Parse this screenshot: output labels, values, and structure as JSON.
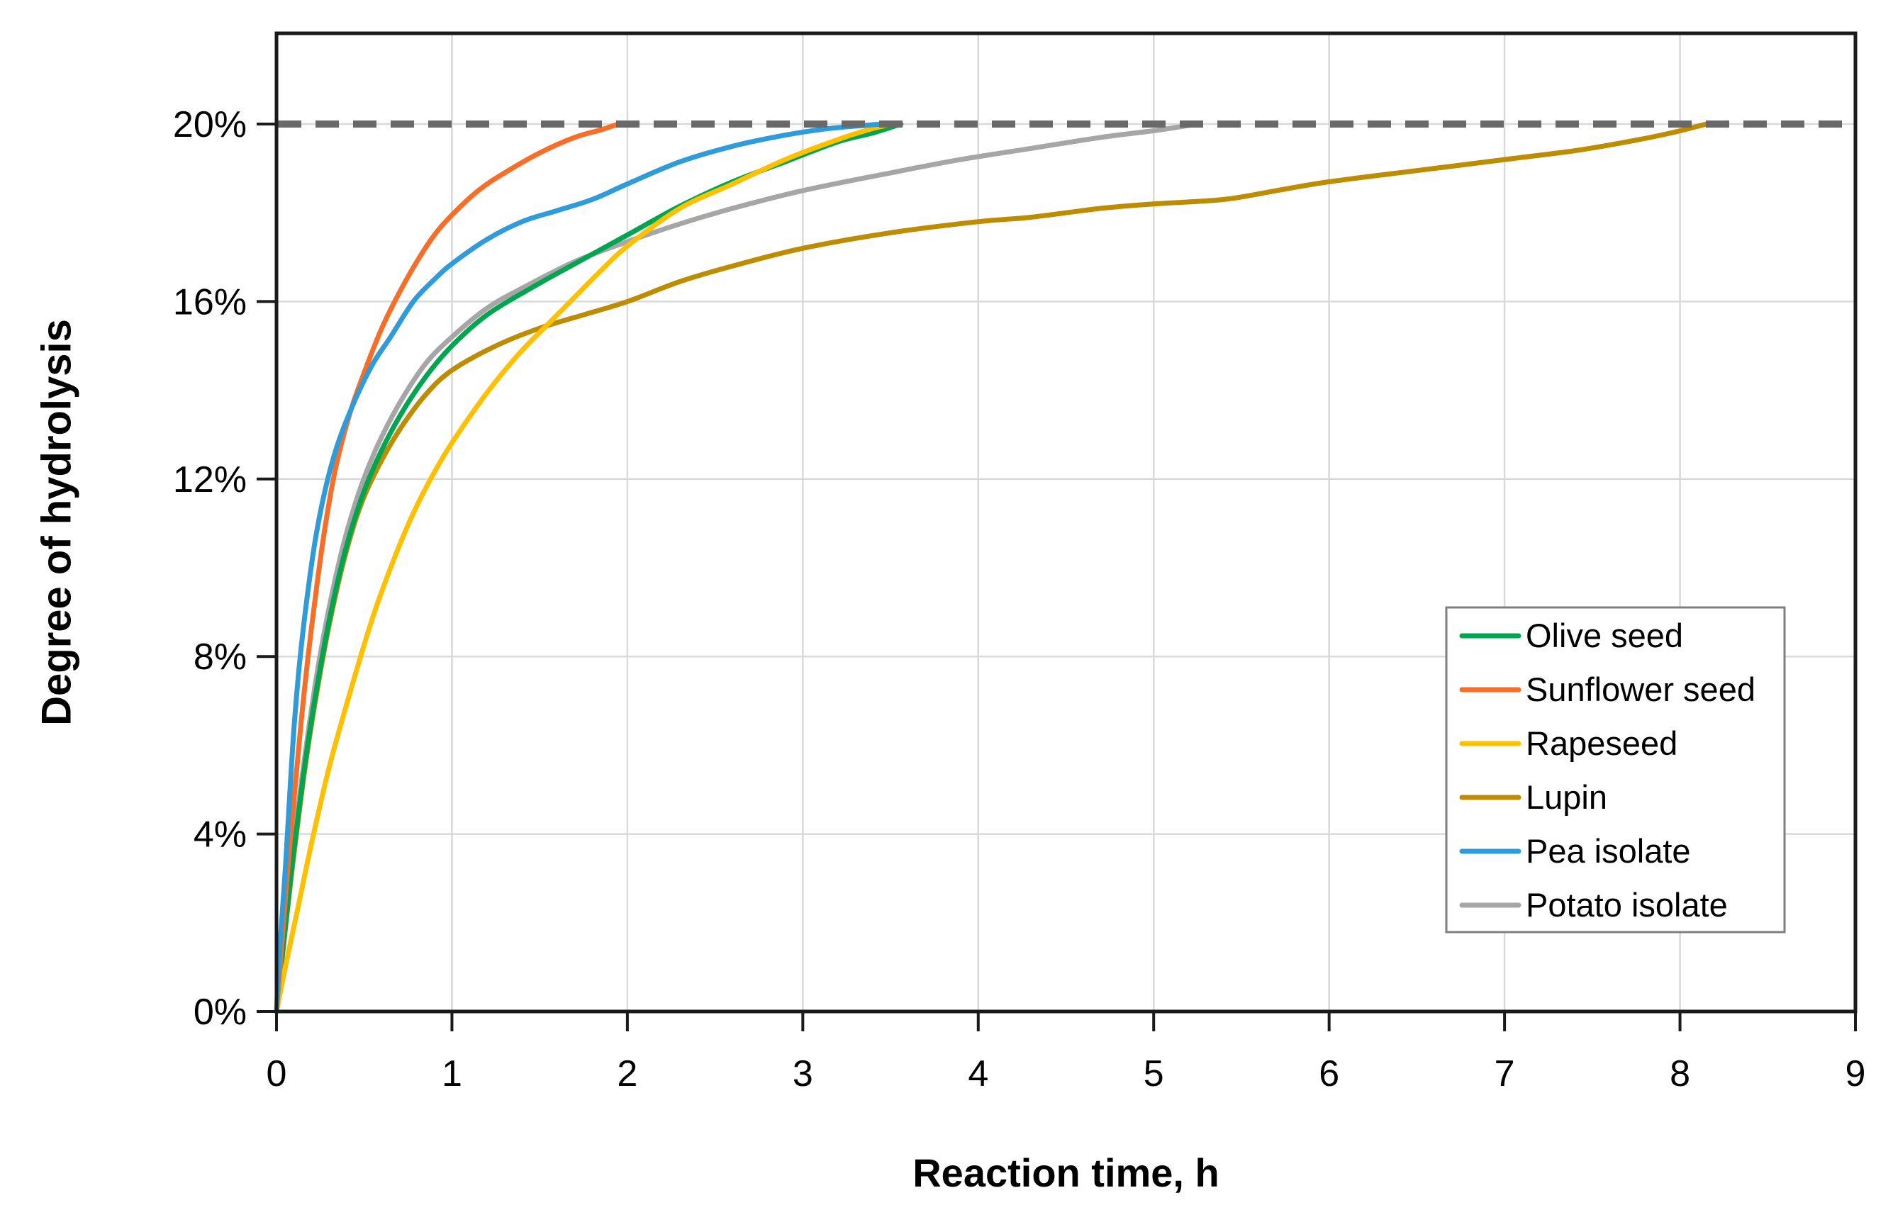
{
  "chart_data": {
    "type": "line",
    "title": "",
    "xlabel": "Reaction time, h",
    "ylabel": "Degree of hydrolysis",
    "xlim": [
      0,
      9
    ],
    "ylim_percent": [
      0,
      22
    ],
    "x_ticks": [
      "0",
      "1",
      "2",
      "3",
      "4",
      "5",
      "6",
      "7",
      "8",
      "9"
    ],
    "y_ticks_percent": [
      0,
      4,
      8,
      12,
      16,
      20
    ],
    "y_tick_labels": [
      "0%",
      "4%",
      "8%",
      "12%",
      "16%",
      "20%"
    ],
    "grid": true,
    "gridline_color": "#d9d9d9",
    "axis_color": "#1a1a1a",
    "reference_line": {
      "value_percent": 20,
      "style": "dashed",
      "color": "#696969"
    },
    "legend": {
      "position": "right-middle",
      "border_color": "#7f7f7f",
      "entries": [
        "Olive seed",
        "Sunflower seed",
        "Rapeseed",
        "Lupin",
        "Pea isolate",
        "Potato isolate"
      ]
    },
    "series": [
      {
        "name": "Olive seed",
        "color": "#00a550",
        "points": [
          [
            0,
            0
          ],
          [
            0.04,
            1.5
          ],
          [
            0.08,
            3.0
          ],
          [
            0.12,
            4.3
          ],
          [
            0.17,
            5.8
          ],
          [
            0.23,
            7.3
          ],
          [
            0.3,
            8.8
          ],
          [
            0.38,
            10.2
          ],
          [
            0.47,
            11.4
          ],
          [
            0.57,
            12.4
          ],
          [
            0.7,
            13.4
          ],
          [
            0.85,
            14.3
          ],
          [
            1.0,
            15.0
          ],
          [
            1.2,
            15.7
          ],
          [
            1.45,
            16.3
          ],
          [
            1.7,
            16.85
          ],
          [
            2.0,
            17.5
          ],
          [
            2.3,
            18.15
          ],
          [
            2.6,
            18.7
          ],
          [
            2.9,
            19.15
          ],
          [
            3.2,
            19.6
          ],
          [
            3.4,
            19.8
          ],
          [
            3.56,
            20
          ]
        ]
      },
      {
        "name": "Sunflower seed",
        "color": "#f66e27",
        "points": [
          [
            0,
            0
          ],
          [
            0.03,
            1.5
          ],
          [
            0.06,
            3.0
          ],
          [
            0.1,
            4.8
          ],
          [
            0.14,
            6.5
          ],
          [
            0.18,
            8.0
          ],
          [
            0.23,
            9.6
          ],
          [
            0.28,
            11.0
          ],
          [
            0.34,
            12.3
          ],
          [
            0.42,
            13.5
          ],
          [
            0.5,
            14.4
          ],
          [
            0.6,
            15.4
          ],
          [
            0.7,
            16.2
          ],
          [
            0.8,
            16.9
          ],
          [
            0.9,
            17.5
          ],
          [
            1.0,
            17.95
          ],
          [
            1.15,
            18.5
          ],
          [
            1.3,
            18.9
          ],
          [
            1.5,
            19.35
          ],
          [
            1.7,
            19.7
          ],
          [
            1.85,
            19.87
          ],
          [
            1.95,
            20
          ]
        ]
      },
      {
        "name": "Rapeseed",
        "color": "#ffc000",
        "points": [
          [
            0,
            0
          ],
          [
            0.05,
            1.0
          ],
          [
            0.12,
            2.3
          ],
          [
            0.2,
            3.8
          ],
          [
            0.3,
            5.5
          ],
          [
            0.42,
            7.2
          ],
          [
            0.55,
            8.9
          ],
          [
            0.68,
            10.3
          ],
          [
            0.8,
            11.4
          ],
          [
            0.95,
            12.5
          ],
          [
            1.1,
            13.4
          ],
          [
            1.25,
            14.2
          ],
          [
            1.4,
            14.9
          ],
          [
            1.55,
            15.5
          ],
          [
            1.7,
            16.1
          ],
          [
            1.85,
            16.7
          ],
          [
            2.0,
            17.25
          ],
          [
            2.3,
            18.1
          ],
          [
            2.6,
            18.65
          ],
          [
            2.9,
            19.2
          ],
          [
            3.2,
            19.65
          ],
          [
            3.4,
            19.9
          ],
          [
            3.52,
            20
          ]
        ]
      },
      {
        "name": "Lupin",
        "color": "#be8c00",
        "points": [
          [
            0,
            0
          ],
          [
            0.04,
            1.5
          ],
          [
            0.08,
            2.9
          ],
          [
            0.12,
            4.2
          ],
          [
            0.17,
            5.7
          ],
          [
            0.23,
            7.2
          ],
          [
            0.3,
            8.7
          ],
          [
            0.38,
            10.1
          ],
          [
            0.47,
            11.3
          ],
          [
            0.57,
            12.2
          ],
          [
            0.7,
            13.1
          ],
          [
            0.85,
            13.9
          ],
          [
            1.0,
            14.45
          ],
          [
            1.25,
            15.0
          ],
          [
            1.5,
            15.4
          ],
          [
            1.75,
            15.7
          ],
          [
            2.0,
            16.0
          ],
          [
            2.3,
            16.45
          ],
          [
            2.6,
            16.8
          ],
          [
            3.0,
            17.2
          ],
          [
            3.5,
            17.55
          ],
          [
            4.0,
            17.8
          ],
          [
            4.3,
            17.9
          ],
          [
            4.7,
            18.1
          ],
          [
            5.0,
            18.2
          ],
          [
            5.4,
            18.3
          ],
          [
            5.7,
            18.5
          ],
          [
            6.0,
            18.7
          ],
          [
            6.5,
            18.95
          ],
          [
            7.0,
            19.2
          ],
          [
            7.4,
            19.4
          ],
          [
            7.7,
            19.6
          ],
          [
            7.95,
            19.8
          ],
          [
            8.15,
            20
          ]
        ]
      },
      {
        "name": "Pea isolate",
        "color": "#2f9bd8",
        "points": [
          [
            0,
            0
          ],
          [
            0.02,
            1.5
          ],
          [
            0.05,
            3.2
          ],
          [
            0.08,
            5.2
          ],
          [
            0.1,
            6.4
          ],
          [
            0.13,
            7.8
          ],
          [
            0.17,
            9.2
          ],
          [
            0.22,
            10.6
          ],
          [
            0.28,
            11.8
          ],
          [
            0.35,
            12.8
          ],
          [
            0.45,
            13.8
          ],
          [
            0.55,
            14.6
          ],
          [
            0.65,
            15.2
          ],
          [
            0.78,
            16.0
          ],
          [
            0.9,
            16.5
          ],
          [
            1.0,
            16.85
          ],
          [
            1.2,
            17.4
          ],
          [
            1.4,
            17.8
          ],
          [
            1.6,
            18.05
          ],
          [
            1.8,
            18.3
          ],
          [
            2.0,
            18.65
          ],
          [
            2.3,
            19.15
          ],
          [
            2.6,
            19.5
          ],
          [
            2.9,
            19.75
          ],
          [
            3.15,
            19.9
          ],
          [
            3.45,
            20
          ]
        ]
      },
      {
        "name": "Potato isolate",
        "color": "#a6a6a6",
        "points": [
          [
            0,
            0
          ],
          [
            0.04,
            1.6
          ],
          [
            0.08,
            3.2
          ],
          [
            0.12,
            4.5
          ],
          [
            0.17,
            6.0
          ],
          [
            0.23,
            7.6
          ],
          [
            0.3,
            9.1
          ],
          [
            0.38,
            10.5
          ],
          [
            0.47,
            11.7
          ],
          [
            0.57,
            12.7
          ],
          [
            0.7,
            13.7
          ],
          [
            0.85,
            14.6
          ],
          [
            1.0,
            15.2
          ],
          [
            1.2,
            15.85
          ],
          [
            1.4,
            16.3
          ],
          [
            1.7,
            16.9
          ],
          [
            2.0,
            17.35
          ],
          [
            2.3,
            17.75
          ],
          [
            2.6,
            18.1
          ],
          [
            3.0,
            18.5
          ],
          [
            3.5,
            18.9
          ],
          [
            3.9,
            19.2
          ],
          [
            4.3,
            19.45
          ],
          [
            4.7,
            19.7
          ],
          [
            5.0,
            19.85
          ],
          [
            5.25,
            20
          ]
        ]
      }
    ]
  }
}
